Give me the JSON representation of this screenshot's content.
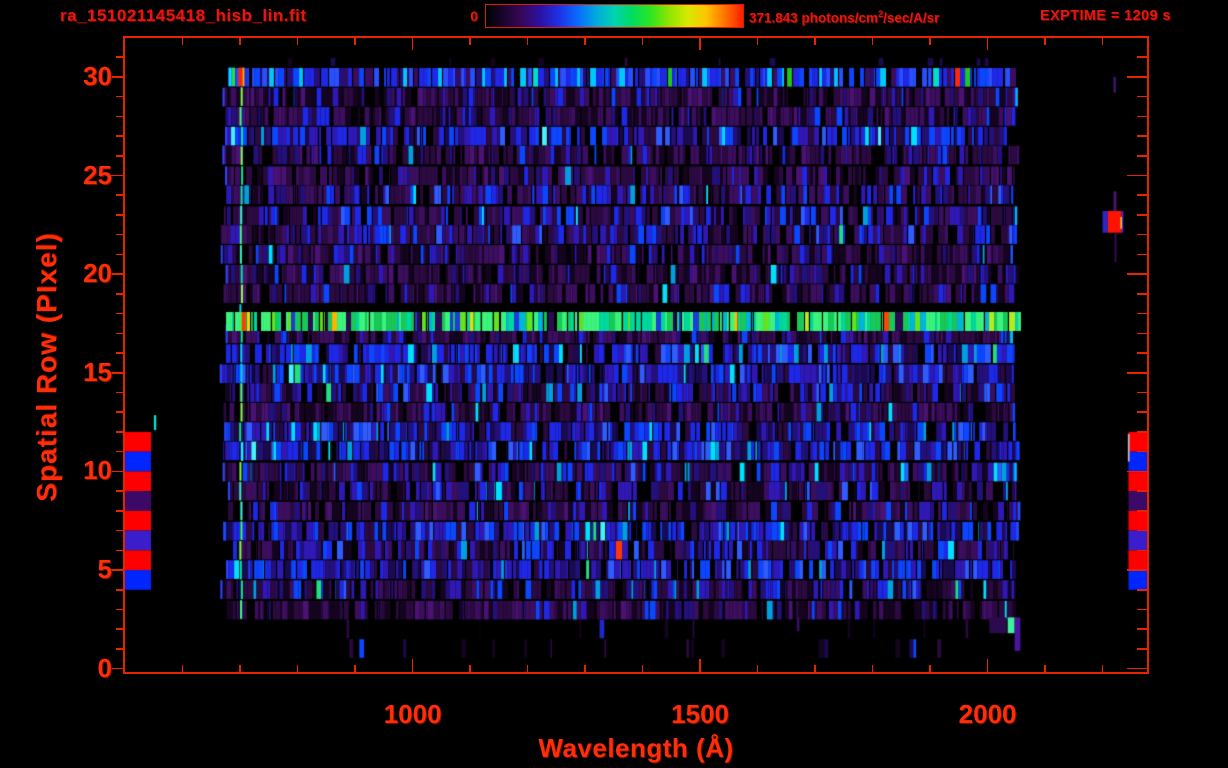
{
  "header": {
    "title": "ra_151021145418_hisb_lin.fit",
    "colorbar_min": "0",
    "colorbar_max": {
      "pre": "371.843 photons/cm",
      "sup": "2",
      "post": "/sec/A/sr"
    },
    "exptime": "EXPTIME = 1209 s"
  },
  "colors": {
    "background": "#000000",
    "header_text": "#e8170d",
    "axis_text": "#ff2d08",
    "axis_line": "#e62400"
  },
  "chart_data": {
    "type": "heatmap",
    "title": "ra_151021145418_hisb_lin.fit",
    "xlabel": "Wavelength (Å)",
    "ylabel": "Spatial Row (PIxel)",
    "xlim": [
      498,
      2279
    ],
    "ylim": [
      -0.32,
      31.92
    ],
    "x_major_ticks": [
      1000,
      1500,
      2000
    ],
    "x_minor_tick_step": 100,
    "x_minor_tick_range": [
      600,
      2200
    ],
    "y_major_ticks": [
      0,
      5,
      10,
      15,
      20,
      25,
      30
    ],
    "y_minor_tick_step": 1,
    "grid": false,
    "colorbar": {
      "min": 0,
      "max": 371.843,
      "units": "photons/cm2/sec/A/sr",
      "gradient": [
        "#000000",
        "#1c0430",
        "#38085c",
        "#2a12a8",
        "#1e32e8",
        "#0a6aff",
        "#00aadd",
        "#00d4b0",
        "#00dd5e",
        "#30e620",
        "#90e600",
        "#d8e800",
        "#ffc400",
        "#ff7400",
        "#ff1c00"
      ]
    },
    "exposure_time_s": 1209,
    "data_extent": {
      "wavelength": [
        672,
        2058
      ],
      "rows": [
        1,
        30
      ]
    },
    "features": {
      "emission_row": {
        "row": 17.6,
        "wavelength": [
          672,
          2058
        ],
        "description": "bright green/yellow emission line across full spectral range"
      },
      "vertical_line": {
        "wavelength": 700,
        "rows": [
          3,
          29
        ],
        "description": "bright cyan-green column near left edge of data"
      },
      "bright_top_row": 30,
      "faint_top_band": {
        "rows": [
          30.55,
          30.95
        ],
        "wavelength": [
          680,
          2050
        ]
      },
      "top_row_accents": [
        {
          "wavelength": 680,
          "width": 3,
          "color": "#00e0ff"
        },
        {
          "wavelength": 686,
          "width": 3,
          "color": "#30e030"
        },
        {
          "wavelength": 697,
          "width": 4,
          "color": "#ff2400"
        },
        {
          "wavelength": 704,
          "width": 2,
          "color": "#ffaa00"
        }
      ],
      "emission_accents": [
        {
          "wavelength": 703,
          "width": 4,
          "color": "#ff3c00"
        },
        {
          "wavelength": 712,
          "width": 3,
          "color": "#ffd400"
        },
        {
          "wavelength": 1100,
          "width": 3,
          "color": "#ffd400"
        },
        {
          "wavelength": 1560,
          "width": 3,
          "color": "#ffc000"
        }
      ],
      "edge_blocks": {
        "rows": [
          4,
          12
        ],
        "pattern_top_to_bottom": [
          "#ff0000",
          "#0026ff",
          "#ff0000",
          "#3c0a66",
          "#ff0000",
          "#3a1ecc",
          "#ff0000",
          "#0026ff"
        ],
        "left_wavelength_span": [
          499,
          545
        ],
        "right_wavelength_span": [
          2245,
          2279
        ]
      },
      "artifacts": [
        {
          "name": "right-blob-blue-edge",
          "color": "#2828c8",
          "wavelength": [
            2200,
            2209
          ],
          "rows": [
            22.1,
            23.2
          ]
        },
        {
          "name": "right-red-blob",
          "color": "#ff1200",
          "wavelength": [
            2209,
            2233
          ],
          "rows": [
            22.1,
            23.2
          ]
        },
        {
          "name": "right-blob-violet-edge",
          "color": "#5a2ae0",
          "wavelength": [
            2233,
            2236
          ],
          "rows": [
            22.1,
            23.2
          ]
        },
        {
          "name": "right-blob-yellow-sliver",
          "color": "#d8d830",
          "wavelength": [
            2231,
            2233
          ],
          "rows": [
            22.3,
            22.9
          ]
        },
        {
          "name": "right-purple-streak-up",
          "color": "#4a1478",
          "wavelength": [
            2219,
            2224
          ],
          "rows": [
            23.2,
            24.2
          ]
        },
        {
          "name": "right-purple-streak-dn",
          "color": "#3a0e5e",
          "wavelength": [
            2221,
            2224
          ],
          "rows": [
            20.6,
            22.1
          ]
        },
        {
          "name": "right-upper-purple-dash",
          "color": "#4a1478",
          "wavelength": [
            2219,
            2223
          ],
          "rows": [
            29.2,
            30.0
          ]
        },
        {
          "name": "right-gray-sliver",
          "color": "#c0c0c0",
          "wavelength": [
            2244,
            2247
          ],
          "rows": [
            10.5,
            11.9
          ]
        },
        {
          "name": "left-cyan-tick",
          "color": "#00e8d8",
          "wavelength": [
            550,
            554
          ],
          "rows": [
            12.1,
            12.85
          ]
        },
        {
          "name": "bottom-right-purple",
          "color": "#2c0a50",
          "wavelength": [
            2003,
            2033
          ],
          "rows": [
            1.8,
            2.6
          ]
        },
        {
          "name": "bottom-right-green",
          "color": "#40f0a0",
          "wavelength": [
            2035,
            2047
          ],
          "rows": [
            1.8,
            2.6
          ]
        },
        {
          "name": "bottom-right-violet",
          "color": "#4a14a0",
          "wavelength": [
            2047,
            2057
          ],
          "rows": [
            0.9,
            2.6
          ]
        },
        {
          "name": "bottom-purple-dot",
          "color": "#3a0e5e",
          "wavelength": [
            1668,
            1673
          ],
          "rows": [
            1.9,
            2.6
          ]
        }
      ]
    },
    "render": {
      "seed": 1337,
      "palettes": {
        "normal": [
          [
            "#000000",
            9
          ],
          [
            "#15041f",
            8
          ],
          [
            "#2b0a40",
            15
          ],
          [
            "#3b0e5e",
            12
          ],
          [
            "#24107a",
            8
          ],
          [
            "#3018b4",
            8
          ],
          [
            "#1e28e6",
            7
          ],
          [
            "#0c46ff",
            5
          ],
          [
            "#2f5cff",
            2.5
          ],
          [
            "#00a0e0",
            1.2
          ],
          [
            "#00e0ff",
            0.8
          ],
          [
            "#20e080",
            0.25
          ],
          [
            "#cadc20",
            0.1
          ],
          [
            "#ff3800",
            0.06
          ]
        ],
        "normal_blue": [
          [
            "#000000",
            6
          ],
          [
            "#1a0a50",
            6
          ],
          [
            "#2b0a40",
            6
          ],
          [
            "#24107a",
            9
          ],
          [
            "#3018b4",
            10
          ],
          [
            "#1e28e6",
            10
          ],
          [
            "#0c46ff",
            8
          ],
          [
            "#2f5cff",
            4
          ],
          [
            "#00a0e0",
            2
          ],
          [
            "#00e0ff",
            1.2
          ],
          [
            "#48f0ff",
            0.3
          ],
          [
            "#20e080",
            0.2
          ]
        ],
        "normal_purple": [
          [
            "#000000",
            10
          ],
          [
            "#15041f",
            10
          ],
          [
            "#2b0a40",
            18
          ],
          [
            "#3b0e5e",
            16
          ],
          [
            "#4a1272",
            6
          ],
          [
            "#24107a",
            6
          ],
          [
            "#3018b4",
            5
          ],
          [
            "#1e28e6",
            3.5
          ],
          [
            "#0c46ff",
            2
          ],
          [
            "#00a0e0",
            0.6
          ],
          [
            "#00e0ff",
            0.3
          ]
        ],
        "dim": [
          [
            "#000000",
            22
          ],
          [
            "#140420",
            10
          ],
          [
            "#2a0a3e",
            7
          ],
          [
            "#1c0a50",
            2.5
          ],
          [
            "#1e28c8",
            0.7
          ],
          [
            "#0c46ff",
            0.3
          ]
        ],
        "top_row": [
          [
            "#1e28e6",
            9
          ],
          [
            "#0c46ff",
            7
          ],
          [
            "#2850ff",
            5
          ],
          [
            "#24107a",
            5
          ],
          [
            "#3b0e5e",
            4
          ],
          [
            "#00c8ff",
            2.5
          ],
          [
            "#00e0c8",
            1
          ],
          [
            "#000000",
            3
          ],
          [
            "#20c820",
            0.4
          ],
          [
            "#ff2810",
            0.3
          ],
          [
            "#ffa000",
            0.2
          ]
        ],
        "emission": [
          [
            "#18c858",
            9
          ],
          [
            "#3cf47c",
            8
          ],
          [
            "#00d89c",
            5
          ],
          [
            "#64e41e",
            4
          ],
          [
            "#b4ec1e",
            2
          ],
          [
            "#00b4dc",
            3
          ],
          [
            "#1e3cdc",
            1.5
          ],
          [
            "#2c0a50",
            1.5
          ],
          [
            "#000000",
            1
          ],
          [
            "#ffb400",
            0.35
          ],
          [
            "#ff4600",
            0.3
          ]
        ]
      },
      "line_colors": [
        "#30f0c0",
        "#40ff70",
        "#00d2ff",
        "#80ff40",
        "#00e8a0"
      ],
      "edge_strip_colors": [
        "#2050ff",
        "#0c46ff",
        "#00b4ff"
      ]
    }
  }
}
